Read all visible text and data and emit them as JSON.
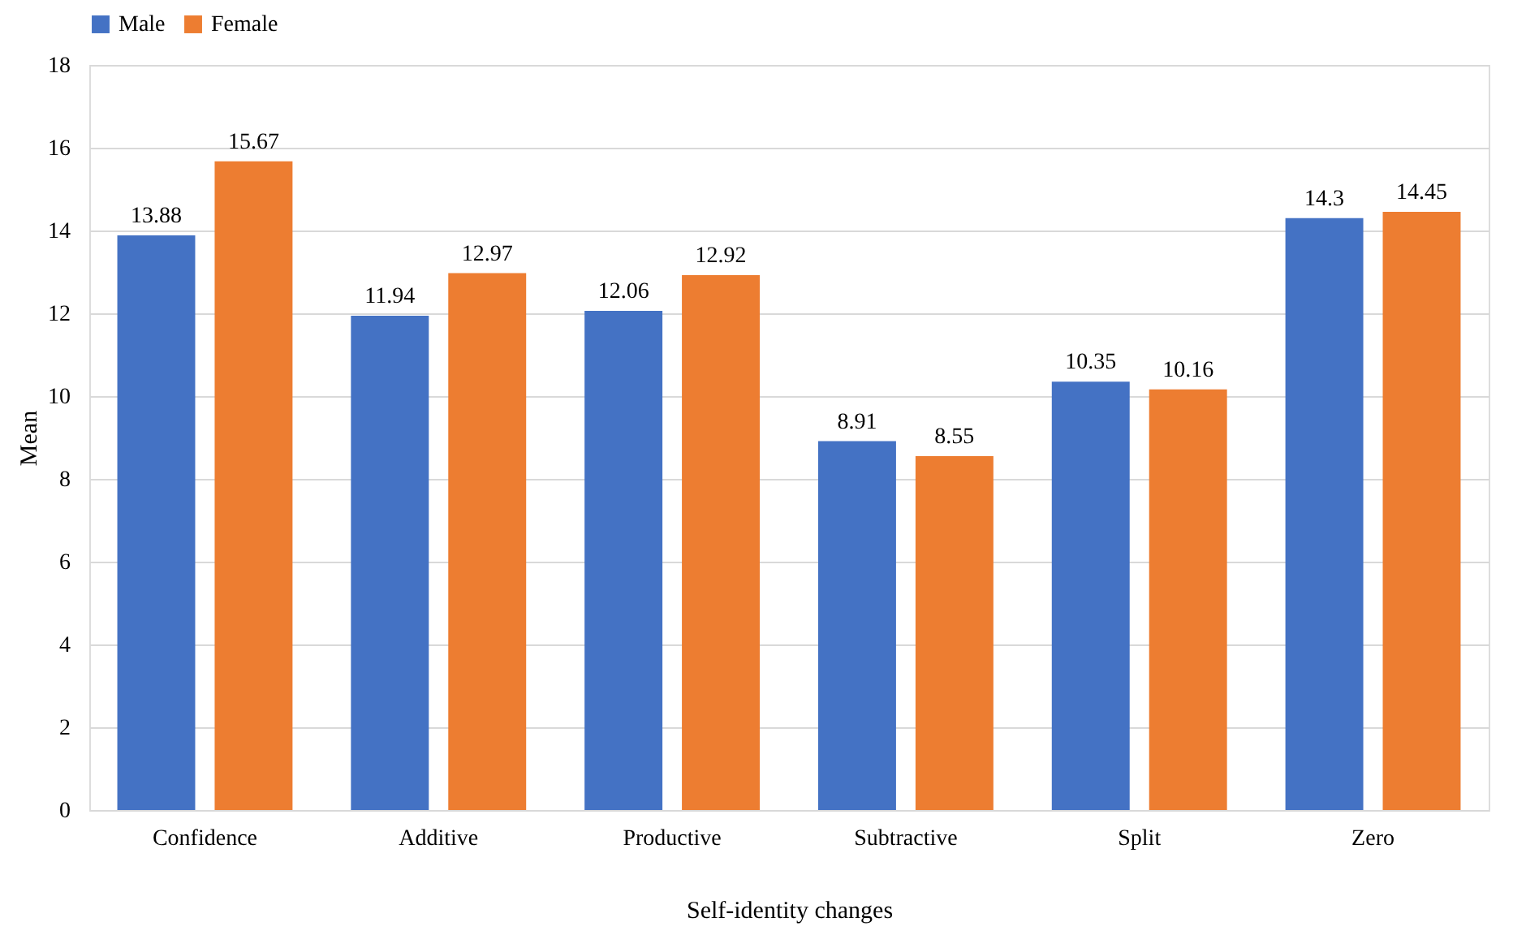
{
  "chart_data": {
    "type": "bar",
    "xlabel": "Self-identity changes",
    "ylabel": "Mean",
    "categories": [
      "Confidence",
      "Additive",
      "Productive",
      "Subtractive",
      "Split",
      "Zero"
    ],
    "series": [
      {
        "name": "Male",
        "color": "#4472c4",
        "values": [
          13.88,
          11.94,
          12.06,
          8.91,
          10.35,
          14.3
        ]
      },
      {
        "name": "Female",
        "color": "#ed7d31",
        "values": [
          15.67,
          12.97,
          12.92,
          8.55,
          10.16,
          14.45
        ]
      }
    ],
    "ylim": [
      0,
      18
    ],
    "yticks": [
      0,
      2,
      4,
      6,
      8,
      10,
      12,
      14,
      16,
      18
    ],
    "grid": "y",
    "legend": "top",
    "data_labels": true
  }
}
